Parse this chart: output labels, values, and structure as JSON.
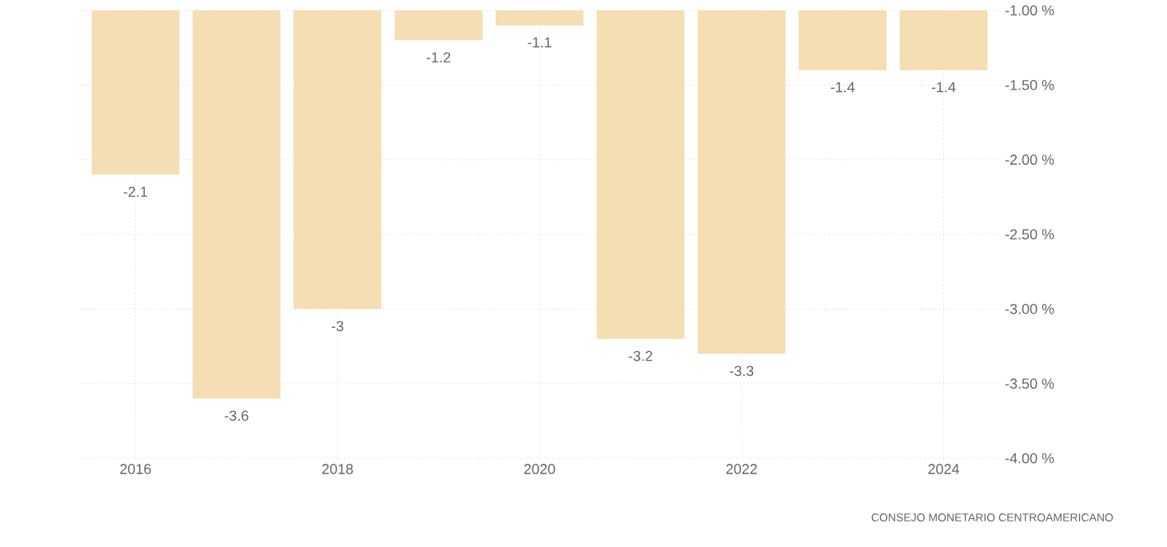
{
  "chart_data": {
    "type": "bar",
    "x": [
      2016,
      2017,
      2018,
      2019,
      2020,
      2021,
      2022,
      2023,
      2024
    ],
    "values": [
      -2.1,
      -3.6,
      -3,
      -1.2,
      -1.1,
      -3.2,
      -3.3,
      -1.4,
      -1.4
    ],
    "color": "#f5deb3",
    "data_labels": true,
    "xlim": [
      2015.45,
      2024.55
    ],
    "xticks": [
      2016,
      2018,
      2020,
      2022,
      2024
    ],
    "ylim": [
      -4,
      -1
    ],
    "yticks": [
      {
        "value": -1,
        "label": "-1.00 %"
      },
      {
        "value": -1.5,
        "label": "-1.50 %"
      },
      {
        "value": -2,
        "label": "-2.00 %"
      },
      {
        "value": -2.5,
        "label": "-2.50 %"
      },
      {
        "value": -3,
        "label": "-3.00 %"
      },
      {
        "value": -3.5,
        "label": "-3.50 %"
      },
      {
        "value": -4,
        "label": "-4.00 %"
      }
    ],
    "grid": true,
    "annotations": [
      "CONSEJO MONETARIO CENTROAMERICANO"
    ]
  }
}
